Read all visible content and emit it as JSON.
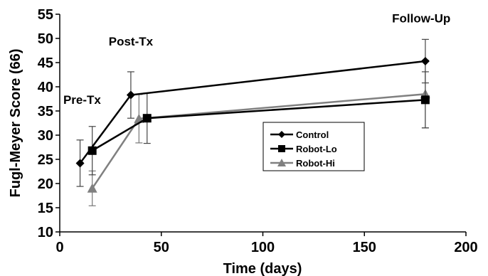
{
  "chart_data": {
    "type": "line",
    "xlabel": "Time (days)",
    "ylabel": "Fugl-Meyer Score (66)",
    "xlim": [
      0,
      200
    ],
    "ylim": [
      10,
      55
    ],
    "x_ticks": [
      "0",
      "50",
      "100",
      "150",
      "200"
    ],
    "y_ticks": [
      "10",
      "15",
      "20",
      "25",
      "30",
      "35",
      "40",
      "45",
      "50",
      "55"
    ],
    "grid": false,
    "legend_position": "center-right",
    "annotations": [
      {
        "text": "Pre-Tx",
        "x": 11,
        "y": 36.5
      },
      {
        "text": "Post-Tx",
        "x": 35,
        "y": 48.5
      },
      {
        "text": "Follow-Up",
        "x": 178,
        "y": 53.3
      }
    ],
    "series": [
      {
        "name": "Control",
        "color": "#000000",
        "marker": "diamond",
        "points": [
          {
            "x": 10,
            "y": 24.2,
            "err": 4.8
          },
          {
            "x": 35,
            "y": 38.3,
            "err": 4.8
          },
          {
            "x": 180,
            "y": 45.3,
            "err": 4.5
          }
        ]
      },
      {
        "name": "Robot-Lo",
        "color": "#000000",
        "marker": "square",
        "points": [
          {
            "x": 16,
            "y": 26.8,
            "err": 5.0
          },
          {
            "x": 43,
            "y": 33.5,
            "err": 5.2
          },
          {
            "x": 180,
            "y": 37.3,
            "err": 5.8
          }
        ]
      },
      {
        "name": "Robot-Hi",
        "color": "#808080",
        "marker": "triangle",
        "points": [
          {
            "x": 16,
            "y": 19.0,
            "err": 3.6
          },
          {
            "x": 39,
            "y": 33.4,
            "err": 5.0
          },
          {
            "x": 180,
            "y": 38.5,
            "err": 7.0
          }
        ]
      }
    ]
  }
}
